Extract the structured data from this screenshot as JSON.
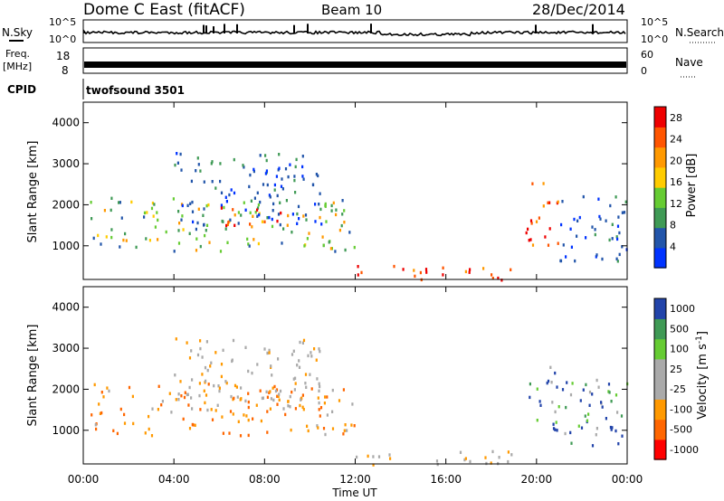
{
  "header": {
    "station": "Dome C East (fitACF)",
    "beam": "Beam 10",
    "date": "28/Dec/2014"
  },
  "strip_labels": {
    "n_sky": "N.Sky",
    "n_search": "N.Search",
    "freq_line1": "Freq.",
    "freq_line2": "[MHz]",
    "nave": "Nave",
    "cpid": "CPID",
    "cpid_name": "twofsound 3501",
    "noise_left_top": "10^5",
    "noise_left_bottom": "10^0",
    "noise_right_top": "10^5",
    "noise_right_bottom": "10^0",
    "freq_top": "18",
    "freq_bottom": "8",
    "nave_top": "60",
    "nave_bottom": "0"
  },
  "colors": {
    "power_scale": [
      "#0033ff",
      "#2255aa",
      "#3f9a55",
      "#66cc33",
      "#ffcc00",
      "#ff9900",
      "#ff5500",
      "#ee0000"
    ],
    "velocity_scale": [
      "#ff0000",
      "#ff6600",
      "#ff9900",
      "#aaaaaa",
      "#aaaaaa",
      "#66cc33",
      "#3f9a55",
      "#2244aa"
    ],
    "accent_line": "#000000"
  },
  "chart_data": [
    {
      "type": "heatmap",
      "panel": "power",
      "ylabel": "Slant Range [km]",
      "yticks": [
        "1000",
        "2000",
        "3000",
        "4000"
      ],
      "ylim": [
        180,
        4500
      ],
      "xlim_hours": [
        0,
        24
      ],
      "colorbar_label": "Power [dB]",
      "colorbar_ticks": [
        "4",
        "8",
        "12",
        "16",
        "20",
        "24",
        "28"
      ],
      "colorbar_range": [
        0,
        30
      ],
      "regions": [
        {
          "t0": 0.3,
          "t1": 12.0,
          "r0": 900,
          "r1": 2200,
          "level": "mid"
        },
        {
          "t0": 4.0,
          "t1": 10.5,
          "r0": 1500,
          "r1": 3300,
          "level": "low"
        },
        {
          "t0": 6.0,
          "t1": 9.0,
          "r0": 1500,
          "r1": 2000,
          "level": "high"
        },
        {
          "t0": 12.0,
          "t1": 19.0,
          "r0": 180,
          "r1": 550,
          "level": "high"
        },
        {
          "t0": 19.5,
          "t1": 21.0,
          "r0": 1000,
          "r1": 2600,
          "level": "high"
        },
        {
          "t0": 21.0,
          "t1": 24.0,
          "r0": 600,
          "r1": 2300,
          "level": "low"
        }
      ]
    },
    {
      "type": "heatmap",
      "panel": "velocity",
      "ylabel": "Slant Range [km]",
      "yticks": [
        "1000",
        "2000",
        "3000",
        "4000"
      ],
      "ylim": [
        180,
        4500
      ],
      "xlabel": "Time UT",
      "xticks": [
        "00:00",
        "04:00",
        "08:00",
        "12:00",
        "16:00",
        "20:00",
        "00:00"
      ],
      "xlim_hours": [
        0,
        24
      ],
      "colorbar_label": "Velocity [m s^-1]",
      "colorbar_ticks": [
        "1000",
        "500",
        "100",
        "25",
        "-25",
        "-100",
        "-500",
        "-1000"
      ],
      "regions": [
        {
          "t0": 0.3,
          "t1": 12.0,
          "r0": 900,
          "r1": 2200,
          "level": "neg"
        },
        {
          "t0": 4.0,
          "t1": 10.5,
          "r0": 1500,
          "r1": 3300,
          "level": "gray"
        },
        {
          "t0": 12.0,
          "t1": 19.0,
          "r0": 180,
          "r1": 550,
          "level": "gray"
        },
        {
          "t0": 19.5,
          "t1": 21.0,
          "r0": 1000,
          "r1": 2600,
          "level": "pos"
        },
        {
          "t0": 21.0,
          "t1": 24.0,
          "r0": 600,
          "r1": 2300,
          "level": "pos"
        }
      ]
    }
  ]
}
